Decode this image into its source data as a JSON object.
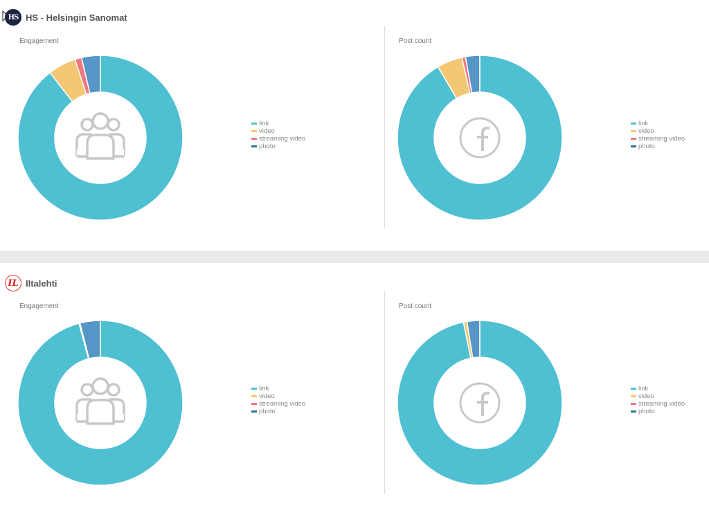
{
  "colors": {
    "link": "#4fbfd2",
    "video": "#f4c772",
    "streaming_video": "#f0797e",
    "photo": "#5596c6",
    "icon": "#c8c8c8"
  },
  "legend_labels": [
    "link",
    "video",
    "streaming video",
    "photo"
  ],
  "sections": [
    {
      "brand": {
        "logo_text": "HS",
        "name": "HS - Helsingin Sanomat"
      },
      "engagement": {
        "title": "Engagement"
      },
      "post_count": {
        "title": "Post count"
      }
    },
    {
      "brand": {
        "logo_text": "IL",
        "name": "Iltalehti"
      },
      "engagement": {
        "title": "Engagement"
      },
      "post_count": {
        "title": "Post count"
      }
    }
  ],
  "chart_data": [
    {
      "type": "pie",
      "title": "Engagement",
      "brand": "HS - Helsingin Sanomat",
      "center_icon": "users-icon",
      "categories": [
        "link",
        "video",
        "streaming video",
        "photo"
      ],
      "values": [
        89.5,
        5.5,
        1.3,
        3.7
      ]
    },
    {
      "type": "pie",
      "title": "Post count",
      "brand": "HS - Helsingin Sanomat",
      "center_icon": "facebook-icon",
      "categories": [
        "link",
        "video",
        "streaming video",
        "photo"
      ],
      "values": [
        91.5,
        5.0,
        0.7,
        2.8
      ]
    },
    {
      "type": "pie",
      "title": "Engagement",
      "brand": "Iltalehti",
      "center_icon": "users-icon",
      "categories": [
        "link",
        "video",
        "streaming video",
        "photo"
      ],
      "values": [
        95.8,
        0.2,
        0,
        4.0
      ]
    },
    {
      "type": "pie",
      "title": "Post count",
      "brand": "Iltalehti",
      "center_icon": "facebook-icon",
      "categories": [
        "link",
        "video",
        "streaming video",
        "photo"
      ],
      "values": [
        96.8,
        0.7,
        0,
        2.5
      ]
    }
  ]
}
